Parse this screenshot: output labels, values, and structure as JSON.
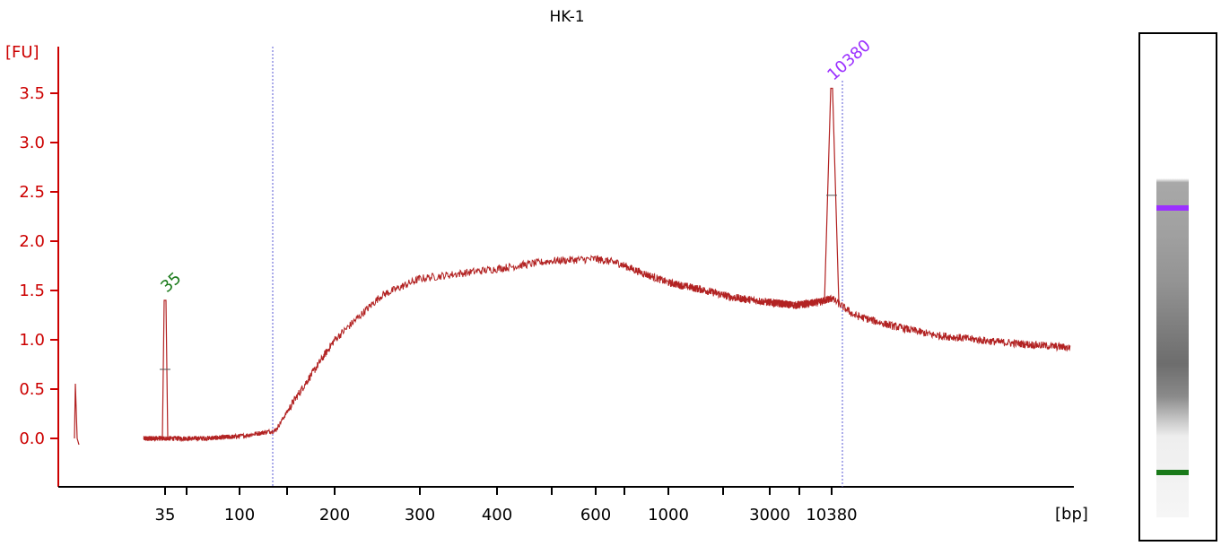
{
  "chart_data": {
    "type": "line",
    "title": "HK-1",
    "ylabel": "[FU]",
    "xlabel": "[bp]",
    "ylim": [
      -0.5,
      4.0
    ],
    "yticks": [
      "0.0",
      "0.5",
      "1.0",
      "1.5",
      "2.0",
      "2.5",
      "3.0",
      "3.5"
    ],
    "xticks": [
      "35",
      "100",
      "200",
      "300",
      "400",
      "600",
      "1000",
      "3000",
      "10380"
    ],
    "peaks": [
      {
        "label": "35",
        "size_bp": 35,
        "height": 1.4,
        "color": "#1a7a1a"
      },
      {
        "label": "10380",
        "size_bp": 10380,
        "height": 3.55,
        "color": "#9b30ff"
      }
    ],
    "region_markers_bp": [
      130,
      11500
    ],
    "series": [
      {
        "color": "#b22222",
        "x": [
          35,
          60,
          100,
          130,
          150,
          200,
          250,
          300,
          400,
          500,
          600,
          700,
          800,
          1000,
          1500,
          2000,
          3000,
          5000,
          8000,
          10380,
          12000,
          15000,
          20000,
          30000,
          48500
        ],
        "values": [
          0.0,
          0.0,
          0.02,
          0.08,
          0.4,
          1.0,
          1.45,
          1.62,
          1.72,
          1.8,
          1.82,
          1.78,
          1.7,
          1.58,
          1.5,
          1.43,
          1.38,
          1.35,
          1.38,
          1.42,
          1.25,
          1.15,
          1.05,
          0.98,
          0.92
        ]
      }
    ],
    "legend": "none",
    "grid": false
  },
  "gel_lane": {
    "frame_color": "#000000",
    "bands": [
      {
        "name": "upper-marker",
        "color": "#9b30ff"
      },
      {
        "name": "lower-marker",
        "color": "#1a7a1a"
      }
    ]
  }
}
